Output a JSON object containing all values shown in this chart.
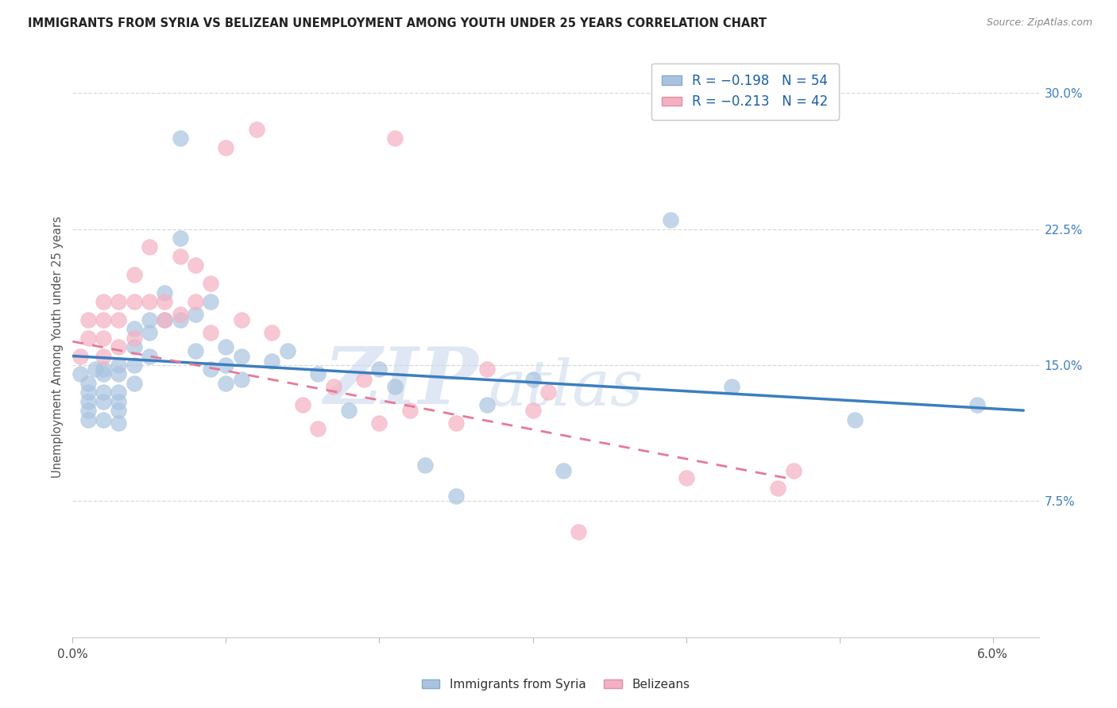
{
  "title": "IMMIGRANTS FROM SYRIA VS BELIZEAN UNEMPLOYMENT AMONG YOUTH UNDER 25 YEARS CORRELATION CHART",
  "source": "Source: ZipAtlas.com",
  "ylabel": "Unemployment Among Youth under 25 years",
  "xlim": [
    0.0,
    0.063
  ],
  "ylim": [
    0.0,
    0.32
  ],
  "xticks": [
    0.0,
    0.01,
    0.02,
    0.03,
    0.04,
    0.05,
    0.06
  ],
  "xticklabels": [
    "0.0%",
    "",
    "",
    "",
    "",
    "",
    "6.0%"
  ],
  "yticks_right": [
    0.075,
    0.15,
    0.225,
    0.3
  ],
  "ytick_labels_right": [
    "7.5%",
    "15.0%",
    "22.5%",
    "30.0%"
  ],
  "blue_color": "#aac4e0",
  "pink_color": "#f5b0c2",
  "blue_line_color": "#3c7ebf",
  "pink_line_color": "#e87898",
  "blue_scatter_x": [
    0.0005,
    0.001,
    0.001,
    0.001,
    0.001,
    0.001,
    0.0015,
    0.002,
    0.002,
    0.002,
    0.002,
    0.002,
    0.003,
    0.003,
    0.003,
    0.003,
    0.003,
    0.003,
    0.004,
    0.004,
    0.004,
    0.004,
    0.005,
    0.005,
    0.005,
    0.006,
    0.006,
    0.007,
    0.007,
    0.007,
    0.008,
    0.008,
    0.009,
    0.009,
    0.01,
    0.01,
    0.01,
    0.011,
    0.011,
    0.013,
    0.014,
    0.016,
    0.018,
    0.02,
    0.021,
    0.023,
    0.025,
    0.027,
    0.03,
    0.032,
    0.039,
    0.043,
    0.051,
    0.059
  ],
  "blue_scatter_y": [
    0.145,
    0.14,
    0.135,
    0.13,
    0.125,
    0.12,
    0.148,
    0.148,
    0.145,
    0.135,
    0.13,
    0.12,
    0.15,
    0.145,
    0.135,
    0.13,
    0.125,
    0.118,
    0.17,
    0.16,
    0.15,
    0.14,
    0.175,
    0.168,
    0.155,
    0.19,
    0.175,
    0.275,
    0.22,
    0.175,
    0.178,
    0.158,
    0.185,
    0.148,
    0.16,
    0.15,
    0.14,
    0.155,
    0.142,
    0.152,
    0.158,
    0.145,
    0.125,
    0.148,
    0.138,
    0.095,
    0.078,
    0.128,
    0.142,
    0.092,
    0.23,
    0.138,
    0.12,
    0.128
  ],
  "pink_scatter_x": [
    0.0005,
    0.001,
    0.001,
    0.002,
    0.002,
    0.002,
    0.002,
    0.003,
    0.003,
    0.003,
    0.004,
    0.004,
    0.004,
    0.005,
    0.005,
    0.006,
    0.006,
    0.007,
    0.007,
    0.008,
    0.008,
    0.009,
    0.009,
    0.01,
    0.011,
    0.012,
    0.013,
    0.015,
    0.016,
    0.017,
    0.019,
    0.02,
    0.021,
    0.022,
    0.025,
    0.027,
    0.03,
    0.031,
    0.033,
    0.04,
    0.046,
    0.047
  ],
  "pink_scatter_y": [
    0.155,
    0.175,
    0.165,
    0.185,
    0.175,
    0.165,
    0.155,
    0.185,
    0.175,
    0.16,
    0.2,
    0.185,
    0.165,
    0.215,
    0.185,
    0.185,
    0.175,
    0.21,
    0.178,
    0.205,
    0.185,
    0.195,
    0.168,
    0.27,
    0.175,
    0.28,
    0.168,
    0.128,
    0.115,
    0.138,
    0.142,
    0.118,
    0.275,
    0.125,
    0.118,
    0.148,
    0.125,
    0.135,
    0.058,
    0.088,
    0.082,
    0.092
  ],
  "blue_line_x0": 0.0,
  "blue_line_y0": 0.155,
  "blue_line_x1": 0.062,
  "blue_line_y1": 0.125,
  "pink_line_x0": 0.0,
  "pink_line_y0": 0.163,
  "pink_line_x1": 0.047,
  "pink_line_y1": 0.087,
  "watermark_zip": "ZIP",
  "watermark_atlas": "atlas",
  "background_color": "#ffffff",
  "grid_color": "#d8d8d8"
}
